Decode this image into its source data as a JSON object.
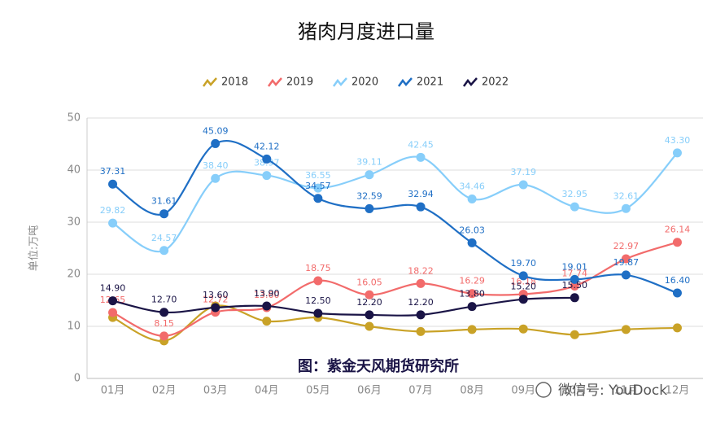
{
  "chart_data": {
    "type": "line",
    "title": "猪肉月度进口量",
    "y_label": "单位:万吨",
    "source": "图：紫金天风期货研究所",
    "watermark": "微信号: YouDock",
    "categories": [
      "01月",
      "02月",
      "03月",
      "04月",
      "05月",
      "06月",
      "07月",
      "08月",
      "09月",
      "10月",
      "11月",
      "12月"
    ],
    "ylim": [
      0,
      50
    ],
    "yticks": [
      0,
      10,
      20,
      30,
      40,
      50
    ],
    "grid": true,
    "legend": "top",
    "smooth": true,
    "series": [
      {
        "name": "2018",
        "color": "#c9a227",
        "values": [
          11.7,
          7.2,
          13.9,
          11.0,
          11.7,
          10.0,
          9.0,
          9.4,
          9.5,
          8.4,
          9.4,
          9.7
        ]
      },
      {
        "name": "2019",
        "color": "#f26b6b",
        "values": [
          12.65,
          8.15,
          12.72,
          13.6,
          18.75,
          16.05,
          18.22,
          16.29,
          16.18,
          17.74,
          22.97,
          26.14
        ],
        "value_labels": [
          "12.65",
          "8.15",
          "12.72",
          "13.60",
          "18.75",
          "16.05",
          "18.22",
          "16.29",
          "16.18",
          "17.74",
          "22.97",
          "26.14"
        ]
      },
      {
        "name": "2020",
        "color": "#87cefa",
        "values": [
          29.82,
          24.57,
          38.4,
          38.97,
          36.55,
          39.11,
          42.45,
          34.46,
          37.19,
          32.95,
          32.61,
          43.3
        ],
        "value_labels": [
          "29.82",
          "24.57",
          "38.40",
          "38.97",
          "36.55",
          "39.11",
          "42.45",
          "34.46",
          "37.19",
          "32.95",
          "32.61",
          "43.30"
        ]
      },
      {
        "name": "2021",
        "color": "#1f6fc5",
        "values": [
          37.31,
          31.61,
          45.09,
          42.12,
          34.57,
          32.59,
          32.94,
          26.03,
          19.7,
          19.01,
          19.87,
          16.4
        ],
        "value_labels": [
          "37.31",
          "31.61",
          "45.09",
          "42.12",
          "34.57",
          "32.59",
          "32.94",
          "26.03",
          "19.70",
          "19.01",
          "19.87",
          "16.40"
        ]
      },
      {
        "name": "2022",
        "color": "#1a1446",
        "values": [
          14.9,
          12.7,
          13.6,
          13.9,
          12.5,
          12.2,
          12.2,
          13.8,
          15.2,
          15.5,
          null,
          null
        ],
        "value_labels": [
          "14.90",
          "12.70",
          "13.60",
          "13.90",
          "12.50",
          "12.20",
          "12.20",
          "13.80",
          "15.20",
          "15.50",
          null,
          null
        ]
      }
    ]
  }
}
